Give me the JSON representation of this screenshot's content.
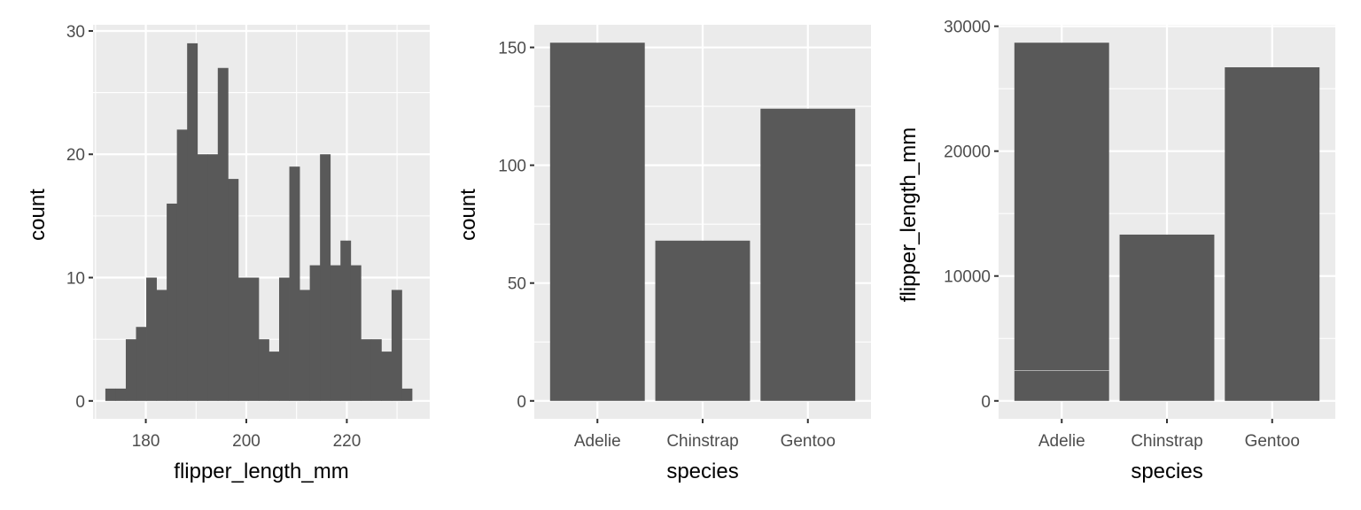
{
  "colors": {
    "panel_bg": "#ebebeb",
    "grid": "#ffffff",
    "bar": "#595959",
    "tick_text": "#4d4d4d"
  },
  "chart_data": [
    {
      "type": "bar",
      "subtype": "histogram",
      "xlabel": "flipper_length_mm",
      "ylabel": "count",
      "bins": 30,
      "bin_start": 171.95,
      "bin_width": 2.034,
      "values": [
        1,
        1,
        5,
        6,
        10,
        9,
        16,
        22,
        29,
        20,
        20,
        27,
        18,
        10,
        10,
        5,
        4,
        10,
        19,
        9,
        11,
        20,
        11,
        13,
        11,
        5,
        5,
        4,
        9,
        1
      ],
      "xlim": [
        169.5,
        236.5
      ],
      "ylim": [
        -1.45,
        30.5
      ],
      "xticks": [
        180,
        200,
        220
      ],
      "xtick_labels": [
        "180",
        "200",
        "220"
      ],
      "yticks": [
        0,
        10,
        20,
        30
      ],
      "ytick_labels": [
        "0",
        "10",
        "20",
        "30"
      ],
      "grid": true
    },
    {
      "type": "bar",
      "xlabel": "species",
      "ylabel": "count",
      "categories": [
        "Adelie",
        "Chinstrap",
        "Gentoo"
      ],
      "values": [
        152,
        68,
        124
      ],
      "ylim": [
        -7.6,
        159.6
      ],
      "yticks": [
        0,
        50,
        100,
        150
      ],
      "ytick_labels": [
        "0",
        "50",
        "100",
        "150"
      ],
      "grid": true
    },
    {
      "type": "bar",
      "subtype": "stacked",
      "xlabel": "species",
      "ylabel": "flipper_length_mm",
      "categories": [
        "Adelie",
        "Chinstrap",
        "Gentoo"
      ],
      "values": [
        28683,
        13316,
        26714
      ],
      "stack_segments": [
        [
          2430,
          26253
        ],
        [
          13316
        ],
        [
          26714
        ]
      ],
      "ylim": [
        -1434,
        30117
      ],
      "yticks": [
        0,
        10000,
        20000,
        30000
      ],
      "ytick_labels": [
        "0",
        "10000",
        "20000",
        "30000"
      ],
      "grid": true
    }
  ]
}
